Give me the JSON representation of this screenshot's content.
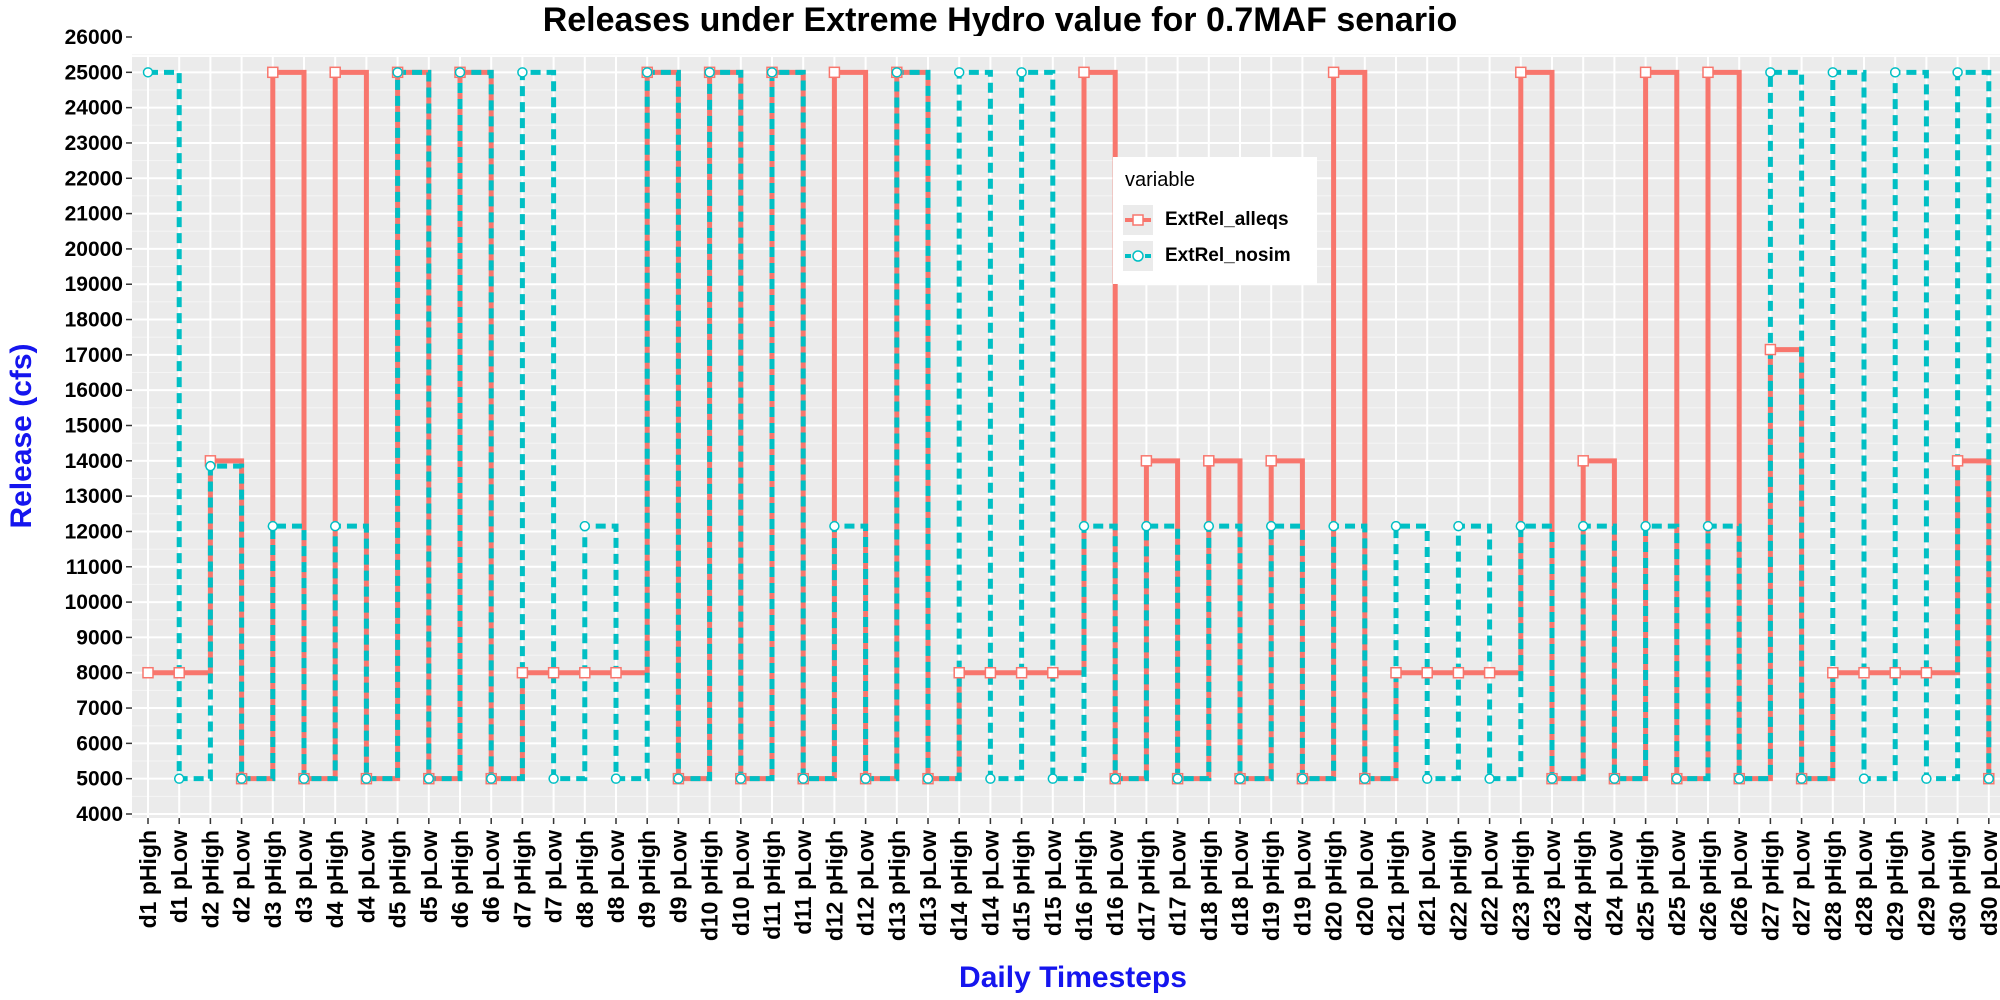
{
  "chart_data": {
    "type": "line",
    "title": "Releases under Extreme Hydro value for 0.7MAF senario",
    "xlabel": "Daily Timesteps",
    "ylabel": "Release (cfs)",
    "ylim": [
      4000,
      26000
    ],
    "yticks": [
      4000,
      5000,
      6000,
      7000,
      8000,
      9000,
      10000,
      11000,
      12000,
      13000,
      14000,
      15000,
      16000,
      17000,
      18000,
      19000,
      20000,
      21000,
      22000,
      23000,
      24000,
      25000,
      26000
    ],
    "grid": true,
    "step": true,
    "legend_title": "variable",
    "legend_position": "inside-top-center",
    "categories": [
      "d1 pHigh",
      "d1 pLow",
      "d2 pHigh",
      "d2 pLow",
      "d3 pHigh",
      "d3 pLow",
      "d4 pHigh",
      "d4 pLow",
      "d5 pHigh",
      "d5 pLow",
      "d6 pHigh",
      "d6 pLow",
      "d7 pHigh",
      "d7 pLow",
      "d8 pHigh",
      "d8 pLow",
      "d9 pHigh",
      "d9 pLow",
      "d10 pHigh",
      "d10 pLow",
      "d11 pHigh",
      "d11 pLow",
      "d12 pHigh",
      "d12 pLow",
      "d13 pHigh",
      "d13 pLow",
      "d14 pHigh",
      "d14 pLow",
      "d15 pHigh",
      "d15 pLow",
      "d16 pHigh",
      "d16 pLow",
      "d17 pHigh",
      "d17 pLow",
      "d18 pHigh",
      "d18 pLow",
      "d19 pHigh",
      "d19 pLow",
      "d20 pHigh",
      "d20 pLow",
      "d21 pHigh",
      "d21 pLow",
      "d22 pHigh",
      "d22 pLow",
      "d23 pHigh",
      "d23 pLow",
      "d24 pHigh",
      "d24 pLow",
      "d25 pHigh",
      "d25 pLow",
      "d26 pHigh",
      "d26 pLow",
      "d27 pHigh",
      "d27 pLow",
      "d28 pHigh",
      "d28 pLow",
      "d29 pHigh",
      "d29 pLow",
      "d30 pHigh",
      "d30 pLow"
    ],
    "series": [
      {
        "name": "ExtRel_alleqs",
        "color": "#F8766D",
        "dashed": false,
        "marker": "square",
        "values": [
          8000,
          8000,
          14000,
          5000,
          25000,
          5000,
          25000,
          5000,
          25000,
          5000,
          25000,
          5000,
          8000,
          8000,
          8000,
          8000,
          25000,
          5000,
          25000,
          5000,
          25000,
          5000,
          25000,
          5000,
          25000,
          5000,
          8000,
          8000,
          8000,
          8000,
          25000,
          5000,
          14000,
          5000,
          14000,
          5000,
          14000,
          5000,
          25000,
          5000,
          8000,
          8000,
          8000,
          8000,
          25000,
          5000,
          14000,
          5000,
          25000,
          5000,
          25000,
          5000,
          17150,
          5000,
          8000,
          8000,
          8000,
          8000,
          14000,
          5000
        ]
      },
      {
        "name": "ExtRel_nosim",
        "color": "#00BFC4",
        "dashed": true,
        "marker": "circle",
        "values": [
          25000,
          5000,
          13850,
          5000,
          12150,
          5000,
          12150,
          5000,
          25000,
          5000,
          25000,
          5000,
          25000,
          5000,
          12150,
          5000,
          25000,
          5000,
          25000,
          5000,
          25000,
          5000,
          12150,
          5000,
          25000,
          5000,
          25000,
          5000,
          25000,
          5000,
          12150,
          5000,
          12150,
          5000,
          12150,
          5000,
          12150,
          5000,
          12150,
          5000,
          12150,
          5000,
          12150,
          5000,
          12150,
          5000,
          12150,
          5000,
          12150,
          5000,
          12150,
          5000,
          25000,
          5000,
          25000,
          5000,
          25000,
          5000,
          25000,
          5000
        ]
      }
    ]
  }
}
